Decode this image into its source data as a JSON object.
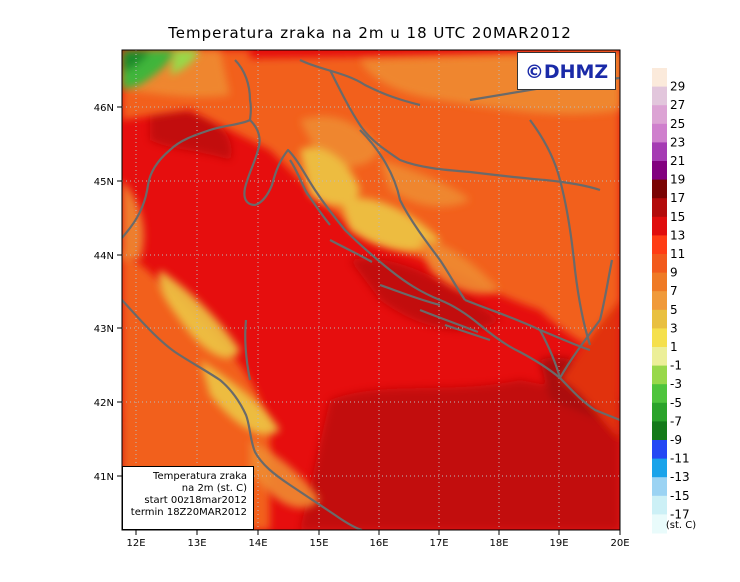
{
  "title": "Temperatura zraka na 2m u 18 UTC 20MAR2012",
  "copyright": "©DHMZ",
  "info_box": {
    "line1": "Temperatura zraka",
    "line2": "na 2m (st. C)",
    "line3": "start 00z18mar2012",
    "line4": "termin 18Z20MAR2012"
  },
  "colorbar": {
    "unit": "(st. C)",
    "labels": [
      "29",
      "27",
      "25",
      "23",
      "21",
      "19",
      "17",
      "15",
      "13",
      "11",
      "9",
      "7",
      "5",
      "3",
      "1",
      "-1",
      "-3",
      "-5",
      "-7",
      "-9",
      "-11",
      "-13",
      "-15",
      "-17"
    ],
    "colors": [
      "#fbeadb",
      "#e2c6dc",
      "#dca3d4",
      "#cf7fcd",
      "#a53bb3",
      "#82007f",
      "#7a0404",
      "#b30b0b",
      "#e00d0d",
      "#ff3c14",
      "#f25a1c",
      "#ef7a25",
      "#f09a3a",
      "#e9c040",
      "#f5e04c",
      "#ecef98",
      "#98d84a",
      "#4ec43c",
      "#2aa32a",
      "#147a1a",
      "#2548f4",
      "#1aa3ea",
      "#9bd3f3",
      "#ccf0f6",
      "#e9fbfb"
    ]
  },
  "axes": {
    "lon_labels": [
      "12E",
      "13E",
      "14E",
      "15E",
      "16E",
      "17E",
      "18E",
      "19E",
      "20E"
    ],
    "lat_labels": [
      "46N",
      "45N",
      "44N",
      "43N",
      "42N",
      "41N"
    ]
  },
  "map_colors": {
    "sea_warm": "#e60e0e",
    "sea_hot": "#c10b0b",
    "land_orange": "#f2611c",
    "land_light": "#ef8b33",
    "land_yellow": "#edc645",
    "mountain_green": "#3fb53a",
    "coastline": "#6a6a6a"
  }
}
